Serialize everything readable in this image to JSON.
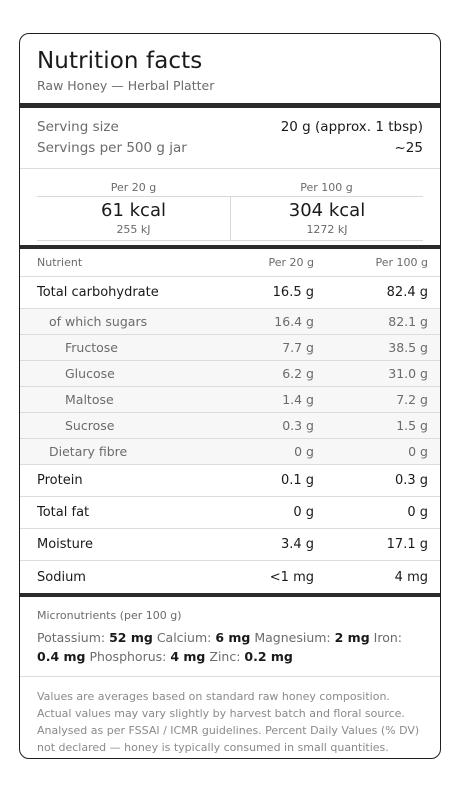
{
  "header": {
    "title": "Nutrition facts",
    "subtitle": "Raw Honey — Herbal Platter"
  },
  "serving": {
    "size_label": "Serving size",
    "size_value": "20 g (approx. 1 tbsp)",
    "per_jar_label": "Servings per 500 g jar",
    "per_jar_value": "~25"
  },
  "energy": {
    "col1_header": "Per 20 g",
    "col1_kcal": "61 kcal",
    "col1_kj": "255 kJ",
    "col2_header": "Per 100 g",
    "col2_kcal": "304 kcal",
    "col2_kj": "1272 kJ"
  },
  "table": {
    "headers": {
      "nutrient": "Nutrient",
      "per_serving": "Per 20 g",
      "per_100": "Per 100 g"
    },
    "rows": [
      {
        "name": "Total carbohydrate",
        "a": "16.5 g",
        "b": "82.4 g"
      },
      {
        "name": "of which sugars",
        "a": "16.4 g",
        "b": "82.1 g"
      },
      {
        "name": "Fructose",
        "a": "7.7 g",
        "b": "38.5 g"
      },
      {
        "name": "Glucose",
        "a": "6.2 g",
        "b": "31.0 g"
      },
      {
        "name": "Maltose",
        "a": "1.4 g",
        "b": "7.2 g"
      },
      {
        "name": "Sucrose",
        "a": "0.3 g",
        "b": "1.5 g"
      },
      {
        "name": "Dietary fibre",
        "a": "0 g",
        "b": "0 g"
      },
      {
        "name": "Protein",
        "a": "0.1 g",
        "b": "0.3 g"
      },
      {
        "name": "Total fat",
        "a": "0 g",
        "b": "0 g"
      },
      {
        "name": "Moisture",
        "a": "3.4 g",
        "b": "17.1 g"
      },
      {
        "name": "Sodium",
        "a": "<1 mg",
        "b": "4 mg"
      }
    ]
  },
  "micro": {
    "heading": "Micronutrients (per 100 g)",
    "items": [
      {
        "label": "Potassium:",
        "value": "52 mg"
      },
      {
        "label": "Calcium:",
        "value": "6 mg"
      },
      {
        "label": "Magnesium:",
        "value": "2 mg"
      },
      {
        "label": "Iron:",
        "value": "0.4 mg"
      },
      {
        "label": "Phosphorus:",
        "value": "4 mg"
      },
      {
        "label": "Zinc:",
        "value": "0.2 mg"
      }
    ]
  },
  "footnote": "Values are averages based on standard raw honey composition. Actual values may vary slightly by harvest batch and floral source. Analysed as per FSSAI / ICMR guidelines. Percent Daily Values (% DV) not declared — honey is typically consumed in small quantities."
}
